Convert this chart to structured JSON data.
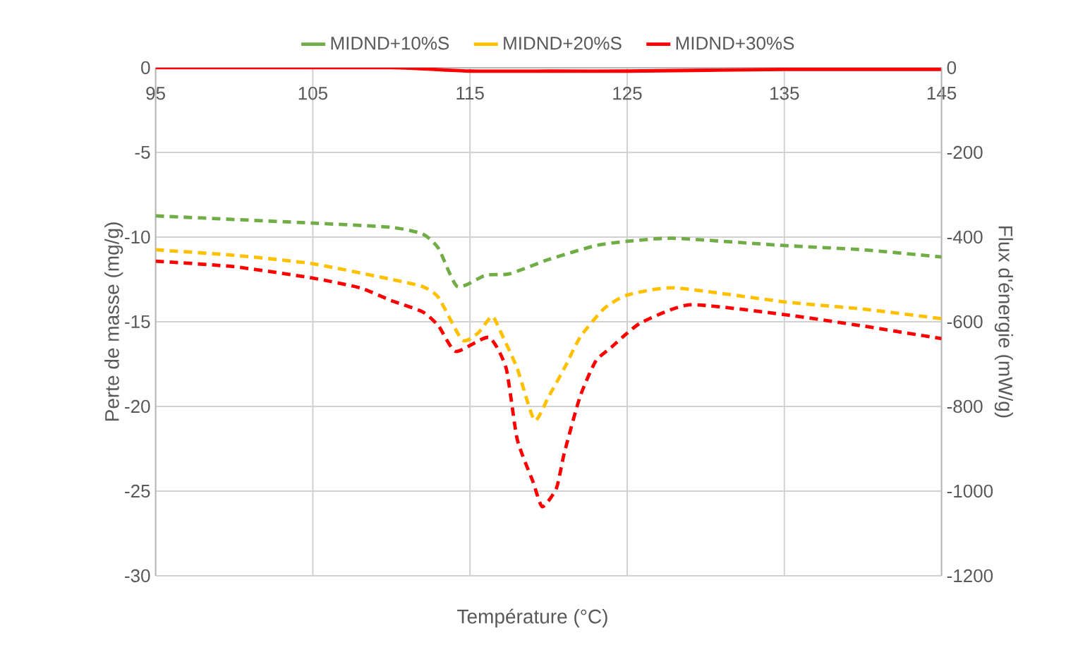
{
  "chart_data": {
    "type": "line",
    "xlabel": "Température (°C)",
    "ylabel": "Perte de masse (mg/g)",
    "y2label": "Flux d'énergie (mW/g)",
    "xlim": [
      95,
      145
    ],
    "xticks": [
      95,
      105,
      115,
      125,
      135,
      145
    ],
    "ylim": [
      -30,
      0
    ],
    "yticks": [
      -30,
      -25,
      -20,
      -15,
      -10,
      -5,
      0
    ],
    "y2lim": [
      -1200,
      0
    ],
    "y2ticks": [
      -1200,
      -1000,
      -800,
      -600,
      -400,
      -200,
      0
    ],
    "grid": true,
    "legend": "top",
    "series": [
      {
        "name": "MIDND+10%S",
        "color": "#70ad47",
        "line_style": "solid",
        "axis": "y",
        "values": [
          null
        ]
      },
      {
        "name": "MIDND+20%S",
        "color": "#ffc000",
        "line_style": "solid",
        "axis": "y",
        "values": [
          null
        ]
      },
      {
        "name": "MIDND+30%S",
        "color": "#ff0000",
        "line_style": "solid",
        "axis": "y",
        "x": [
          95,
          100,
          110,
          115,
          120,
          125,
          135,
          145
        ],
        "values": [
          0,
          0,
          0,
          -0.2,
          -0.2,
          -0.2,
          -0.1,
          -0.1
        ]
      },
      {
        "color": "#70ad47",
        "line_style": "dashed",
        "axis": "y2",
        "x": [
          95,
          105,
          110,
          112,
          113,
          114.2,
          116,
          117.5,
          120,
          123,
          125,
          128,
          135,
          140,
          145
        ],
        "values": [
          -350,
          -367,
          -377,
          -393,
          -427,
          -517,
          -490,
          -487,
          -453,
          -420,
          -410,
          -403,
          -420,
          -430,
          -447
        ]
      },
      {
        "color": "#ffc000",
        "line_style": "dashed",
        "axis": "y2",
        "x": [
          95,
          100,
          105,
          110,
          112,
          113,
          114.5,
          115.5,
          116.4,
          116.9,
          118,
          119.1,
          120,
          121,
          122,
          123.5,
          125,
          128,
          135,
          140,
          145
        ],
        "values": [
          -430,
          -443,
          -463,
          -500,
          -517,
          -543,
          -643,
          -627,
          -587,
          -620,
          -710,
          -833,
          -777,
          -710,
          -637,
          -570,
          -537,
          -520,
          -553,
          -570,
          -593
        ]
      },
      {
        "color": "#ff0000",
        "line_style": "dashed",
        "axis": "y2",
        "x": [
          95,
          100,
          105,
          108,
          110,
          112,
          113,
          114.1,
          116.2,
          117.3,
          118,
          119,
          119.6,
          120.5,
          121,
          122,
          123,
          124,
          125,
          126,
          129,
          135,
          140,
          145
        ],
        "values": [
          -457,
          -470,
          -497,
          -520,
          -550,
          -577,
          -610,
          -670,
          -637,
          -710,
          -877,
          -977,
          -1037,
          -993,
          -910,
          -777,
          -693,
          -660,
          -627,
          -600,
          -560,
          -583,
          -610,
          -640
        ]
      }
    ]
  }
}
